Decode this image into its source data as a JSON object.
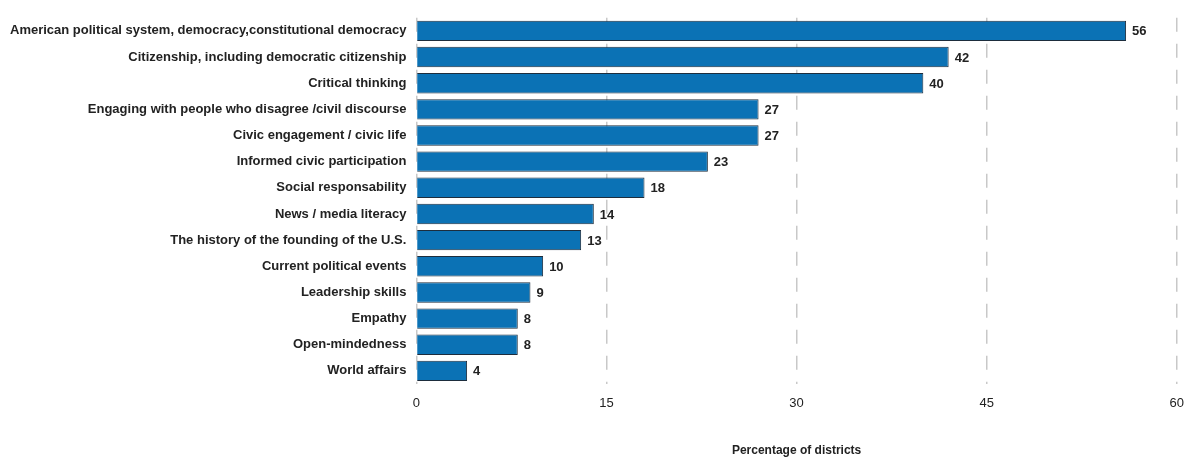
{
  "chart_data": {
    "type": "bar",
    "orientation": "horizontal",
    "xlabel": "Percentage of districts",
    "categories": [
      "American political system, democracy,constitutional democracy",
      "Citizenship, including democratic citizenship",
      "Critical thinking",
      "Engaging with people who disagree /civil discourse",
      "Civic engagement / civic life",
      "Informed civic participation",
      "Social responsability",
      "News / media literacy",
      "The history of the founding of the U.S.",
      "Current political events",
      "Leadership skills",
      "Empathy",
      "Open-mindedness",
      "World affairs"
    ],
    "values": [
      56,
      42,
      40,
      27,
      27,
      23,
      18,
      14,
      13,
      10,
      9,
      8,
      8,
      4
    ],
    "color": "#0b72b5",
    "xlim": [
      0,
      60
    ],
    "xticks": [
      0,
      15,
      30,
      45,
      60
    ],
    "grid": "x",
    "data_labels": true,
    "legend": false
  }
}
